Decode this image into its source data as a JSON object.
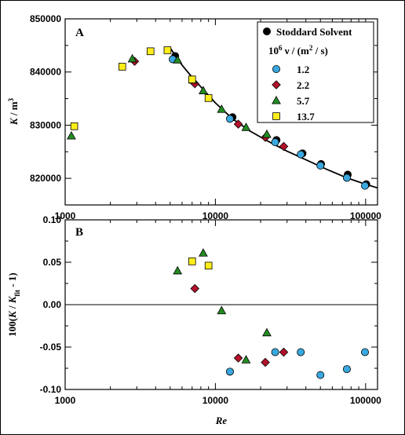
{
  "colors": {
    "stoddard": "#000000",
    "s1": "#3aa8e0",
    "s2": "#b3122a",
    "s3": "#228b22",
    "s4": "#ffee1a",
    "fit": "#000000"
  },
  "chart_data": [
    {
      "panel": "A",
      "type": "scatter",
      "xscale": "log",
      "xlim": [
        1000,
        120000
      ],
      "ylim": [
        815000,
        850000
      ],
      "ylabel": "K / m3",
      "yticks": [
        "820000",
        "830000",
        "840000",
        "850000"
      ],
      "ytick_values": [
        820000,
        830000,
        840000,
        850000
      ],
      "xticks": [
        "1000",
        "10000",
        "100000"
      ],
      "legend": {
        "placement": "top-right",
        "title1": "Stoddard Solvent",
        "title2": "10^6 ν / (m^2 / s)",
        "items": [
          "1.2",
          "2.2",
          "5.7",
          "13.7"
        ]
      },
      "series": [
        {
          "name": "Stoddard Solvent",
          "marker": "circle",
          "x": [
            5400,
            13000,
            25500,
            38000,
            50500,
            76000,
            101000
          ],
          "y": [
            843000,
            831500,
            827200,
            824700,
            822700,
            820700,
            818900
          ]
        },
        {
          "name": "1.2",
          "marker": "circle",
          "x": [
            5200,
            12500,
            25000,
            37000,
            50000,
            75000,
            99000
          ],
          "y": [
            842400,
            831200,
            826800,
            824500,
            822400,
            820100,
            818600
          ]
        },
        {
          "name": "2.2",
          "marker": "diamond",
          "x": [
            2900,
            7300,
            14200,
            21500,
            28500
          ],
          "y": [
            842000,
            837800,
            830200,
            827700,
            826000
          ]
        },
        {
          "name": "5.7",
          "marker": "triangle",
          "x": [
            1100,
            2800,
            5600,
            7100,
            8300,
            11000,
            16000,
            22000
          ],
          "y": [
            828000,
            842500,
            842300,
            838500,
            836500,
            833000,
            829600,
            828300
          ]
        },
        {
          "name": "13.7",
          "marker": "square",
          "x": [
            1150,
            2400,
            3700,
            4800,
            7000,
            9000
          ],
          "y": [
            829800,
            841000,
            843900,
            844100,
            838600,
            835100
          ]
        }
      ],
      "fit_curve": {
        "x": [
          5000,
          6000,
          7000,
          8500,
          10000,
          13000,
          17000,
          22000,
          30000,
          40000,
          55000,
          75000,
          100000,
          120000
        ],
        "y": [
          844500,
          841300,
          839000,
          836400,
          834200,
          831200,
          828900,
          827100,
          825100,
          823500,
          821700,
          820100,
          818900,
          818200
        ]
      }
    },
    {
      "panel": "B",
      "type": "scatter",
      "xscale": "log",
      "xlim": [
        1000,
        120000
      ],
      "ylim": [
        -0.1,
        0.1
      ],
      "xlabel": "Re",
      "ylabel": "100(K / Kfit - 1)",
      "yticks": [
        "-0.10",
        "-0.05",
        "0.00",
        "0.05",
        "0.10"
      ],
      "ytick_values": [
        -0.1,
        -0.05,
        0.0,
        0.05,
        0.1
      ],
      "xticks": [
        "1000",
        "10000",
        "100000"
      ],
      "series": [
        {
          "name": "1.2",
          "marker": "circle",
          "x": [
            12500,
            25000,
            37000,
            50000,
            75000,
            99000
          ],
          "y": [
            -0.079,
            -0.056,
            -0.056,
            -0.083,
            -0.076,
            -0.056
          ]
        },
        {
          "name": "2.2",
          "marker": "diamond",
          "x": [
            7300,
            14200,
            21500,
            28500
          ],
          "y": [
            0.019,
            -0.063,
            -0.068,
            -0.056
          ]
        },
        {
          "name": "5.7",
          "marker": "triangle",
          "x": [
            5600,
            8300,
            11000,
            16000,
            22000
          ],
          "y": [
            0.04,
            0.061,
            -0.007,
            -0.065,
            -0.033
          ]
        },
        {
          "name": "13.7",
          "marker": "square",
          "x": [
            7000,
            9000
          ],
          "y": [
            0.051,
            0.046
          ]
        }
      ]
    }
  ]
}
